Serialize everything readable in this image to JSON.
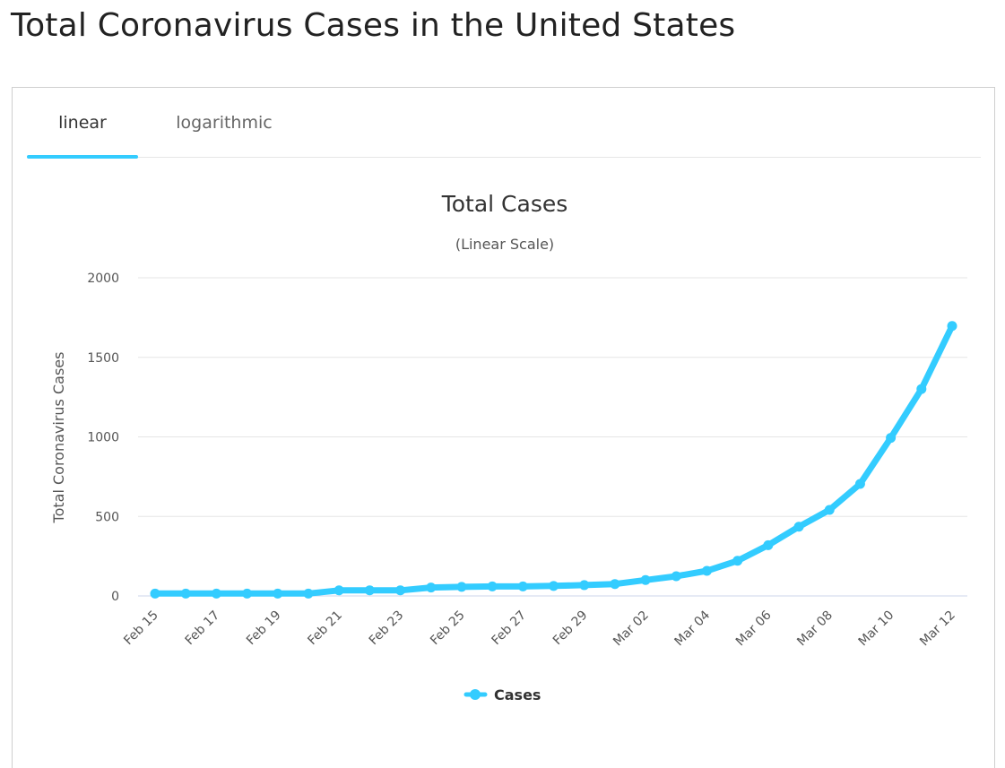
{
  "page": {
    "title": "Total Coronavirus Cases in the United States"
  },
  "tabs": [
    {
      "label": "linear",
      "active": true
    },
    {
      "label": "logarithmic",
      "active": false
    }
  ],
  "colors": {
    "accent": "#33ccff",
    "grid": "#e6e6e6"
  },
  "chart_data": {
    "type": "line",
    "title": "Total Cases",
    "subtitle": "(Linear Scale)",
    "ylabel": "Total Coronavirus Cases",
    "xlabel": "",
    "ylim": [
      0,
      2000
    ],
    "yticks": [
      0,
      500,
      1000,
      1500,
      2000
    ],
    "grid": true,
    "legend_position": "bottom-center",
    "x": [
      "Feb 15",
      "Feb 16",
      "Feb 17",
      "Feb 18",
      "Feb 19",
      "Feb 20",
      "Feb 21",
      "Feb 22",
      "Feb 23",
      "Feb 24",
      "Feb 25",
      "Feb 26",
      "Feb 27",
      "Feb 28",
      "Feb 29",
      "Mar 01",
      "Mar 02",
      "Mar 03",
      "Mar 04",
      "Mar 05",
      "Mar 06",
      "Mar 07",
      "Mar 08",
      "Mar 09",
      "Mar 10",
      "Mar 11",
      "Mar 12"
    ],
    "xtick_labels": [
      "Feb 15",
      "Feb 17",
      "Feb 19",
      "Feb 21",
      "Feb 23",
      "Feb 25",
      "Feb 27",
      "Feb 29",
      "Mar 02",
      "Mar 04",
      "Mar 06",
      "Mar 08",
      "Mar 10",
      "Mar 12"
    ],
    "series": [
      {
        "name": "Cases",
        "color": "#33ccff",
        "values": [
          15,
          15,
          15,
          15,
          15,
          15,
          35,
          35,
          35,
          53,
          57,
          60,
          60,
          63,
          68,
          75,
          100,
          124,
          158,
          221,
          319,
          435,
          541,
          704,
          994,
          1301,
          1697
        ]
      }
    ]
  }
}
